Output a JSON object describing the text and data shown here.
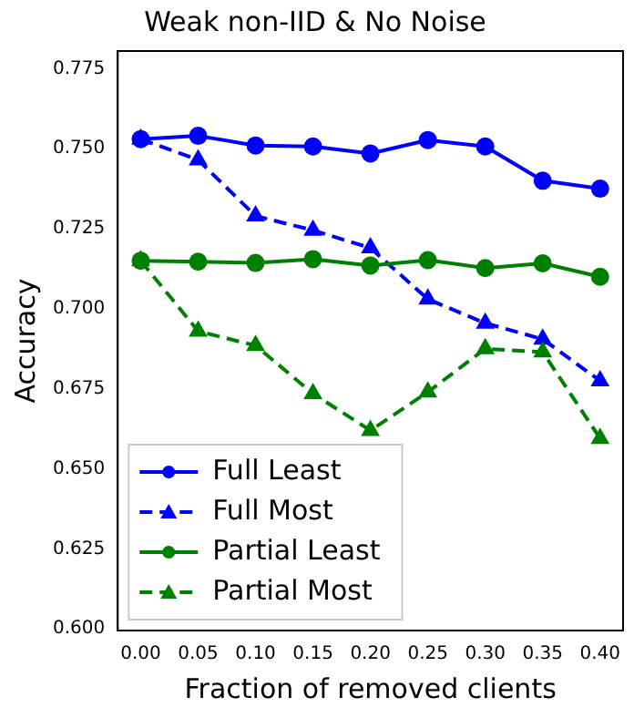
{
  "chart_data": {
    "type": "line",
    "title": "Weak non-IID & No Noise",
    "xlabel": "Fraction of removed clients",
    "ylabel": "Accuracy",
    "x": [
      0.0,
      0.05,
      0.1,
      0.15,
      0.2,
      0.25,
      0.3,
      0.35,
      0.4
    ],
    "series": [
      {
        "name": "Full Least",
        "color": "#0000ff",
        "marker": "circle",
        "line_style": "solid",
        "values": [
          0.753,
          0.754,
          0.751,
          0.7507,
          0.7485,
          0.7527,
          0.7507,
          0.74,
          0.7375
        ]
      },
      {
        "name": "Full Most",
        "color": "#0000ff",
        "marker": "triangle",
        "line_style": "dashed",
        "values": [
          0.753,
          0.7465,
          0.729,
          0.7245,
          0.719,
          0.703,
          0.6955,
          0.6905,
          0.6775
        ]
      },
      {
        "name": "Partial Least",
        "color": "#008000",
        "marker": "circle",
        "line_style": "solid",
        "values": [
          0.715,
          0.7147,
          0.7143,
          0.7155,
          0.7135,
          0.7152,
          0.7127,
          0.7142,
          0.71
        ]
      },
      {
        "name": "Partial Most",
        "color": "#008000",
        "marker": "triangle",
        "line_style": "dashed",
        "values": [
          0.715,
          0.693,
          0.6885,
          0.6735,
          0.662,
          0.674,
          0.6875,
          0.6865,
          0.6595
        ]
      }
    ],
    "xlim": [
      -0.02,
      0.42
    ],
    "ylim": [
      0.5995,
      0.7805
    ],
    "xticks": [
      {
        "value": 0.0,
        "label": "0.00"
      },
      0.05,
      {
        "value": 0.1,
        "label": "0.10"
      },
      0.15,
      {
        "value": 0.2,
        "label": "0.20"
      },
      0.25,
      {
        "value": 0.3,
        "label": "0.30"
      },
      0.35,
      {
        "value": 0.4,
        "label": "0.40"
      }
    ],
    "yticks": [
      {
        "value": 0.6,
        "label": "0.600"
      },
      0.625,
      {
        "value": 0.65,
        "label": "0.650"
      },
      0.675,
      {
        "value": 0.7,
        "label": "0.700"
      },
      0.725,
      {
        "value": 0.75,
        "label": "0.750"
      },
      0.775
    ],
    "grid": false,
    "legend": "bottom left"
  }
}
